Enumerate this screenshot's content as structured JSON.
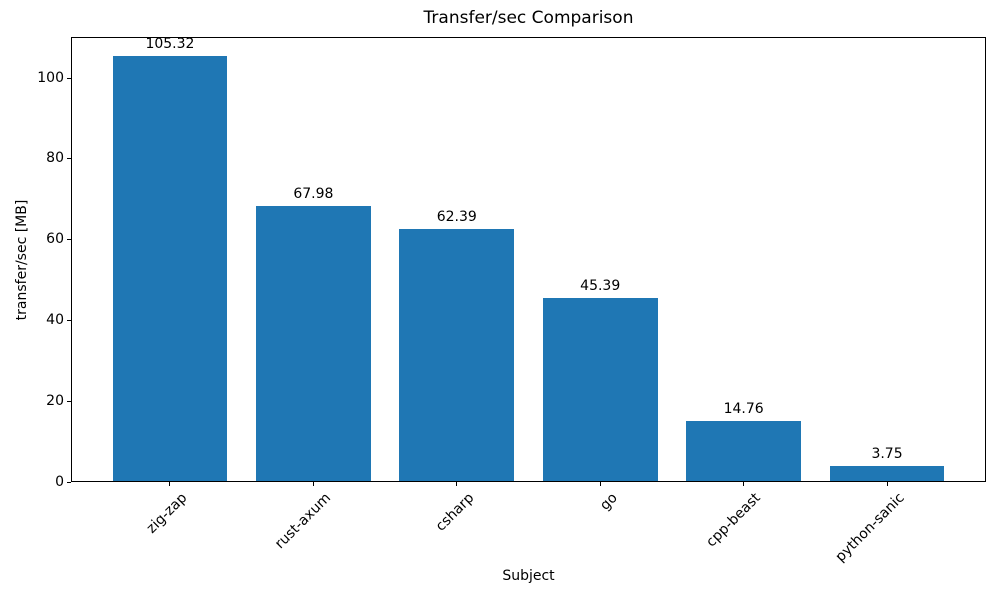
{
  "chart_data": {
    "type": "bar",
    "title": "Transfer/sec Comparison",
    "xlabel": "Subject",
    "ylabel": "transfer/sec [MB]",
    "categories": [
      "zig-zap",
      "rust-axum",
      "csharp",
      "go",
      "cpp-beast",
      "python-sanic"
    ],
    "values": [
      105.32,
      67.98,
      62.39,
      45.39,
      14.76,
      3.75
    ],
    "value_labels": [
      "105.32",
      "67.98",
      "62.39",
      "45.39",
      "14.76",
      "3.75"
    ],
    "yticks": [
      0,
      20,
      40,
      60,
      80,
      100
    ],
    "ytick_labels": [
      "0",
      "20",
      "40",
      "60",
      "80",
      "100"
    ],
    "ylim": [
      0,
      110.2
    ],
    "bar_color": "#1f77b4",
    "text_color": "#000000",
    "grid": false,
    "legend_position": "none"
  }
}
